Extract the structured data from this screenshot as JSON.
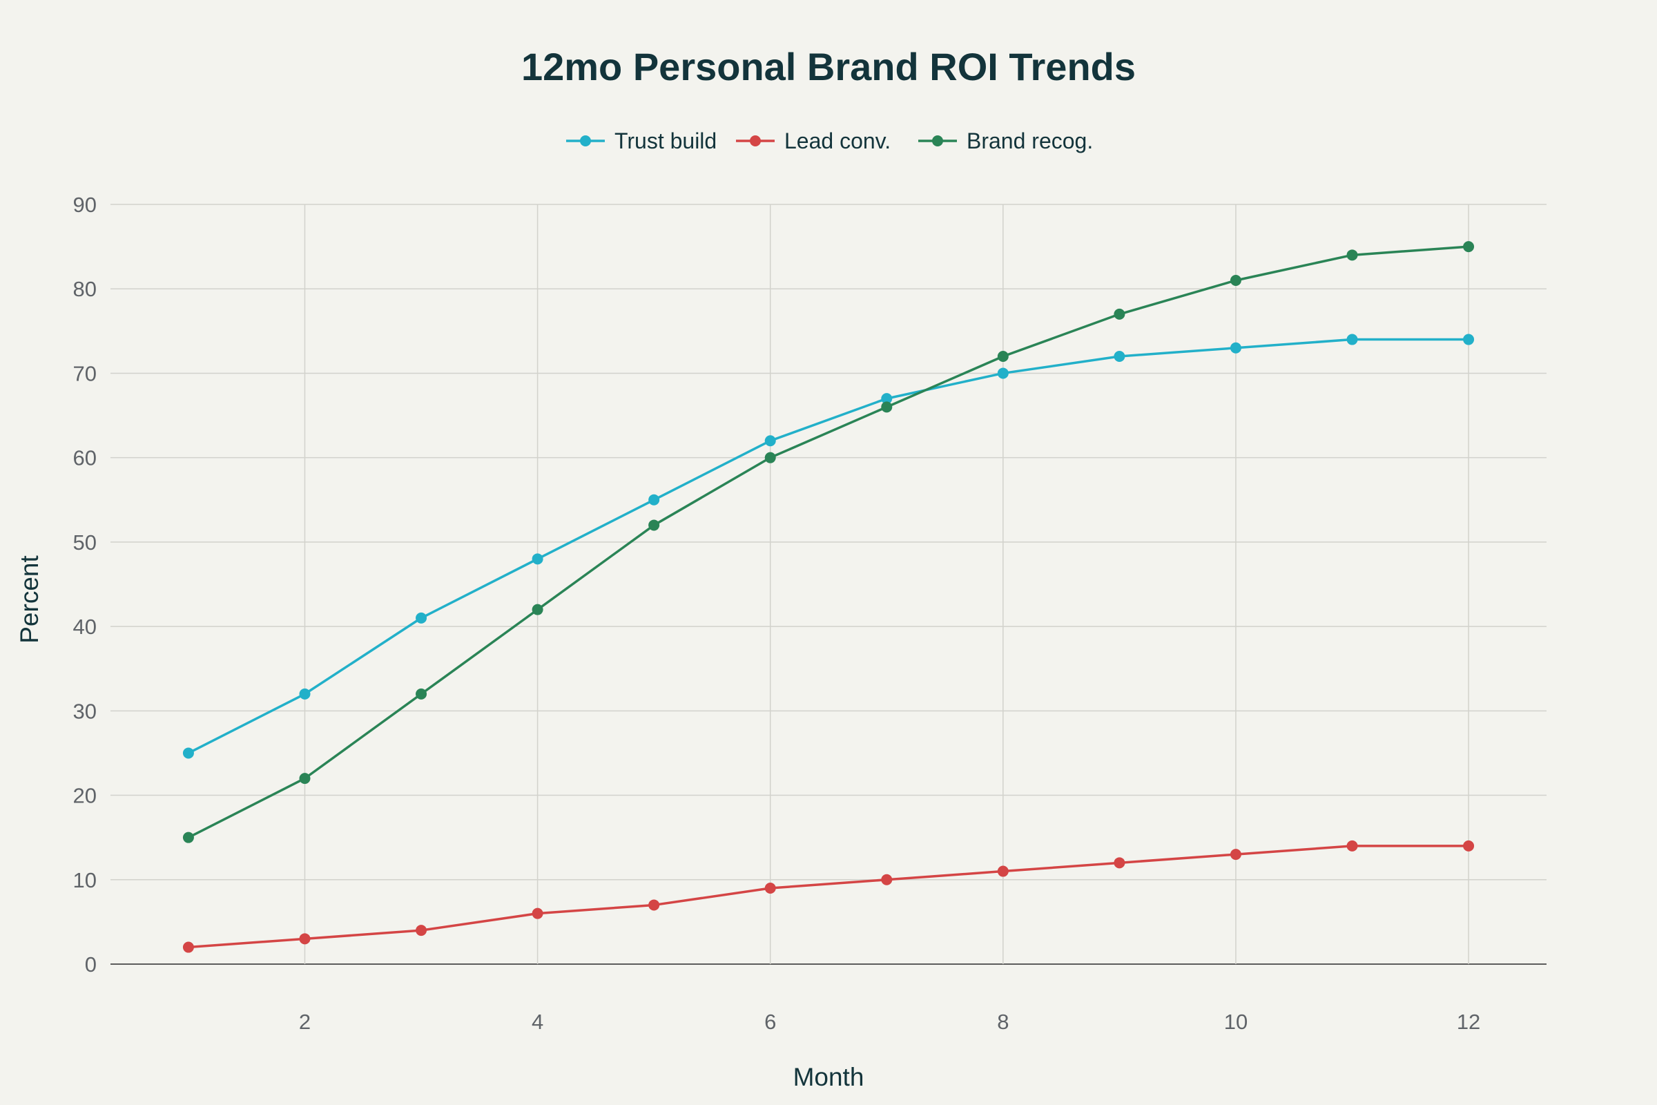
{
  "chart_data": {
    "type": "line",
    "title": "12mo Personal Brand ROI Trends",
    "xlabel": "Month",
    "ylabel": "Percent",
    "x": [
      1,
      2,
      3,
      4,
      5,
      6,
      7,
      8,
      9,
      10,
      11,
      12
    ],
    "xticks": [
      2,
      4,
      6,
      8,
      10,
      12
    ],
    "yticks": [
      0,
      10,
      20,
      30,
      40,
      50,
      60,
      70,
      80,
      90
    ],
    "xlim": [
      0.33,
      12.67
    ],
    "ylim": [
      0,
      90
    ],
    "grid": true,
    "legend_position": "top-center",
    "series": [
      {
        "name": "Trust build",
        "color": "#22b0c9",
        "values": [
          25,
          32,
          41,
          48,
          55,
          62,
          67,
          70,
          72,
          73,
          74,
          74
        ]
      },
      {
        "name": "Lead conv.",
        "color": "#d44545",
        "values": [
          2,
          3,
          4,
          6,
          7,
          9,
          10,
          11,
          12,
          13,
          14,
          14
        ]
      },
      {
        "name": "Brand recog.",
        "color": "#2a8456",
        "values": [
          15,
          22,
          32,
          42,
          52,
          60,
          66,
          72,
          77,
          81,
          84,
          85
        ]
      }
    ]
  }
}
